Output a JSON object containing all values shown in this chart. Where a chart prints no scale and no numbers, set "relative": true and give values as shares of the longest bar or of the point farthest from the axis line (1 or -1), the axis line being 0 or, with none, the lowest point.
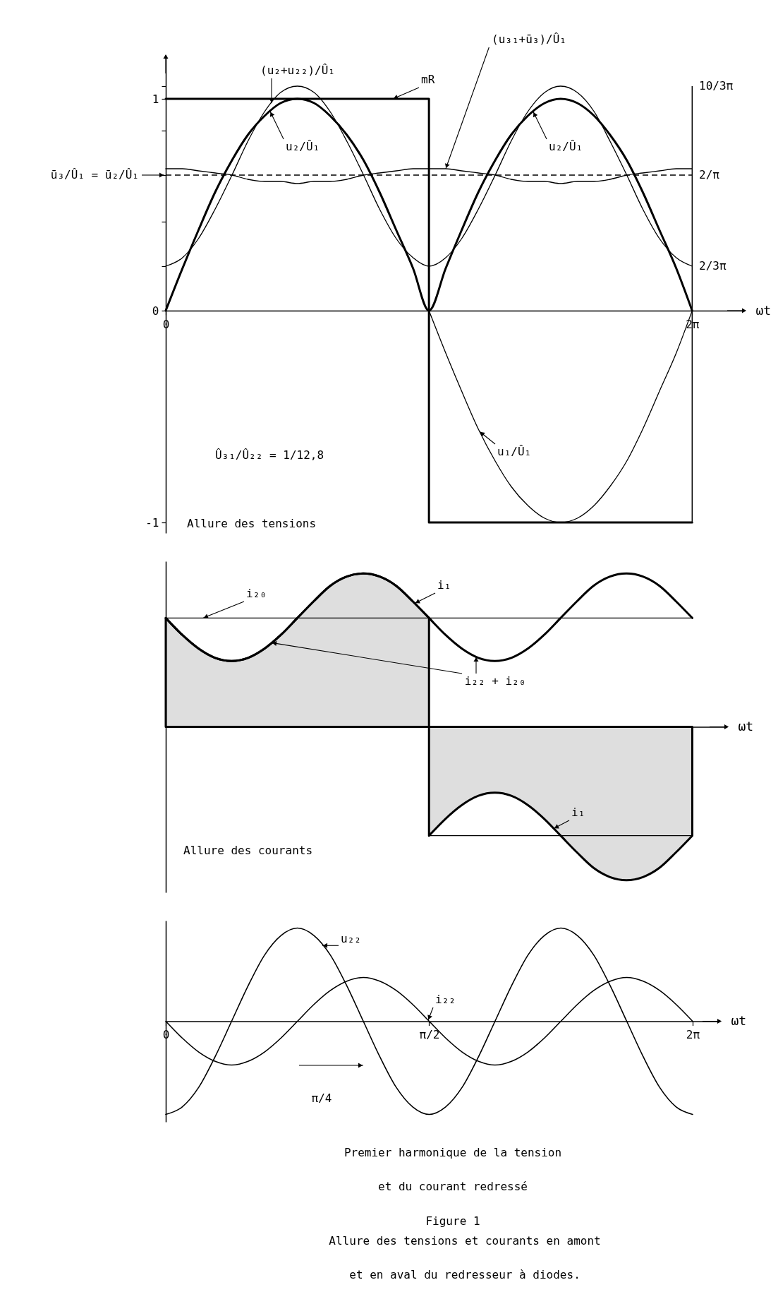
{
  "chart_data": [
    {
      "type": "line",
      "xlabel": "ωt",
      "x": [
        0,
        0.2,
        0.39,
        0.59,
        0.79,
        0.98,
        1.18,
        1.37,
        1.57,
        1.77,
        1.96,
        2.16,
        2.36,
        2.55,
        2.75,
        2.95,
        3.14,
        3.34,
        3.53,
        3.73,
        3.93,
        4.12,
        4.32,
        4.52,
        4.71,
        4.91,
        5.11,
        5.3,
        5.5,
        5.69,
        5.89,
        6.09,
        6.28
      ],
      "xlim": [
        0,
        6.9
      ],
      "xticks": [
        0,
        {
          "value": 6.28,
          "label": "2π"
        }
      ],
      "ylim": [
        -1.05,
        1.2
      ],
      "yticks": [
        -1,
        0,
        {
          "value": 0.21,
          "label": null
        },
        {
          "value": 0.42,
          "label": null
        },
        {
          "value": 0.64,
          "label": null
        },
        {
          "value": 0.85,
          "label": null
        },
        1,
        {
          "value": 1.06,
          "label": null
        }
      ],
      "series": [
        {
          "name": "mR",
          "color": "#000000",
          "x": [
            0,
            3.14,
            3.14,
            6.28
          ],
          "values": [
            1,
            1,
            -1,
            -1
          ]
        },
        {
          "name": "u₂/Û₁",
          "color": "#000000",
          "values": [
            0,
            0.2,
            0.38,
            0.56,
            0.71,
            0.83,
            0.92,
            0.98,
            1,
            0.98,
            0.92,
            0.83,
            0.71,
            0.56,
            0.38,
            0.2,
            0,
            0.2,
            0.38,
            0.56,
            0.71,
            0.83,
            0.92,
            0.98,
            1,
            0.98,
            0.92,
            0.83,
            0.71,
            0.56,
            0.38,
            0.2,
            0
          ]
        },
        {
          "name": "(u₂+u₂₂)/Û₁",
          "color": "#000000",
          "values": [
            0.21,
            0.25,
            0.34,
            0.48,
            0.64,
            0.8,
            0.94,
            1.03,
            1.06,
            1.03,
            0.94,
            0.8,
            0.64,
            0.48,
            0.34,
            0.25,
            0.21,
            0.25,
            0.34,
            0.48,
            0.64,
            0.8,
            0.94,
            1.03,
            1.06,
            1.03,
            0.94,
            0.8,
            0.64,
            0.48,
            0.34,
            0.25,
            0.21
          ]
        },
        {
          "color": "#000000",
          "values": [
            0.67,
            0.67,
            0.66,
            0.65,
            0.64,
            0.62,
            0.61,
            0.61,
            0.6,
            0.61,
            0.61,
            0.62,
            0.64,
            0.65,
            0.66,
            0.67,
            0.67,
            0.67,
            0.66,
            0.65,
            0.64,
            0.62,
            0.61,
            0.61,
            0.6,
            0.61,
            0.61,
            0.62,
            0.64,
            0.65,
            0.66,
            0.67,
            0.67
          ]
        },
        {
          "name": "u₁/Û₁",
          "color": "#000000",
          "x": [
            3.14,
            3.34,
            3.53,
            3.73,
            3.93,
            4.12,
            4.32,
            4.52,
            4.71,
            4.91,
            5.11,
            5.3,
            5.5,
            5.69,
            5.89,
            6.09,
            6.28
          ],
          "values": [
            0,
            -0.2,
            -0.38,
            -0.56,
            -0.71,
            -0.83,
            -0.92,
            -0.98,
            -1,
            -0.98,
            -0.92,
            -0.83,
            -0.71,
            -0.56,
            -0.38,
            -0.2,
            0
          ]
        }
      ],
      "ref_lines": [
        {
          "axis": "y",
          "value": 0.64,
          "label": "ū₃/Û₁ = ū₂/Û₁",
          "line_style": "dashed"
        },
        {
          "axis": "x",
          "value": 6.28
        }
      ],
      "annotations": [
        "Û₃₁/Û₂₂ = 1/12,8",
        "Allure des tensions",
        "10/3π",
        "2/π",
        "2/3π",
        {
          "text": "(u₃₁+ū₃)/Û₁",
          "x": 3.34,
          "y": 0.67
        }
      ]
    },
    {
      "type": "line",
      "relative": true,
      "xlabel": "ωt",
      "tick_labels": false,
      "categories": [
        null,
        null,
        null,
        null,
        null,
        null,
        null,
        null,
        null,
        null,
        null,
        null,
        null,
        null,
        null,
        null,
        null,
        null,
        null,
        null,
        null,
        null,
        null,
        null,
        null,
        null,
        null,
        null,
        null,
        null,
        null,
        null,
        null
      ],
      "series": [
        {
          "name": "i₂₂ + i₂₀",
          "color": "#000000",
          "values": [
            0.71,
            0.6,
            0.51,
            0.45,
            0.43,
            0.45,
            0.51,
            0.6,
            0.71,
            0.82,
            0.92,
            0.98,
            1,
            0.98,
            0.92,
            0.82,
            0.71,
            0.6,
            0.51,
            0.45,
            0.43,
            0.45,
            0.51,
            0.6,
            0.71,
            0.82,
            0.92,
            0.98,
            1,
            0.98,
            0.92,
            0.82,
            0.71
          ]
        },
        {
          "name": "i₁",
          "type": "area",
          "color": "#000000",
          "values": [
            0.71,
            0.6,
            0.51,
            0.45,
            0.43,
            0.45,
            0.51,
            0.6,
            0.71,
            0.82,
            0.92,
            0.98,
            1,
            0.98,
            0.92,
            0.82,
            0.71,
            null,
            null,
            null,
            null,
            null,
            null,
            null,
            null,
            null,
            null,
            null,
            null,
            null,
            null,
            null,
            null
          ]
        },
        {
          "name": "i₁",
          "type": "area",
          "color": "#000000",
          "values": [
            null,
            null,
            null,
            null,
            null,
            null,
            null,
            null,
            null,
            null,
            null,
            null,
            null,
            null,
            null,
            null,
            -0.71,
            -0.6,
            -0.51,
            -0.45,
            -0.43,
            -0.45,
            -0.51,
            -0.6,
            -0.71,
            -0.82,
            -0.92,
            -0.98,
            -1,
            -0.98,
            -0.92,
            -0.82,
            -0.71
          ]
        },
        {
          "name": "i₂₀",
          "color": "#000000",
          "values": [
            0.71,
            0.71,
            0.71,
            0.71,
            0.71,
            0.71,
            0.71,
            0.71,
            0.71,
            0.71,
            0.71,
            0.71,
            0.71,
            0.71,
            0.71,
            0.71,
            0.71,
            0.71,
            0.71,
            0.71,
            0.71,
            0.71,
            0.71,
            0.71,
            0.71,
            0.71,
            0.71,
            0.71,
            0.71,
            0.71,
            0.71,
            0.71,
            0.71
          ]
        },
        {
          "color": "#000000",
          "values": [
            null,
            null,
            null,
            null,
            null,
            null,
            null,
            null,
            null,
            null,
            null,
            null,
            null,
            null,
            null,
            null,
            -0.71,
            -0.71,
            -0.71,
            -0.71,
            -0.71,
            -0.71,
            -0.71,
            -0.71,
            -0.71,
            -0.71,
            -0.71,
            -0.71,
            -0.71,
            -0.71,
            -0.71,
            -0.71,
            -0.71
          ]
        }
      ],
      "annotations": [
        "Allure des courants"
      ]
    },
    {
      "type": "line",
      "relative": true,
      "xlabel": "ωt",
      "tick_labels": "x",
      "categories": [
        "0",
        null,
        null,
        null,
        null,
        null,
        null,
        null,
        null,
        null,
        null,
        null,
        null,
        null,
        null,
        null,
        "π/2",
        null,
        null,
        null,
        null,
        null,
        null,
        null,
        null,
        null,
        null,
        null,
        null,
        null,
        null,
        null,
        "2π"
      ],
      "series": [
        {
          "name": "u₂₂",
          "color": "#000000",
          "values": [
            -1,
            -0.92,
            -0.71,
            -0.38,
            0,
            0.38,
            0.71,
            0.92,
            1,
            0.92,
            0.71,
            0.38,
            0,
            -0.38,
            -0.71,
            -0.92,
            -1,
            -0.92,
            -0.71,
            -0.38,
            0,
            0.38,
            0.71,
            0.92,
            1,
            0.92,
            0.71,
            0.38,
            0,
            -0.38,
            -0.71,
            -0.92,
            -1
          ]
        },
        {
          "name": "i₂₂",
          "color": "#000000",
          "values": [
            0,
            -0.18,
            -0.33,
            -0.43,
            -0.47,
            -0.43,
            -0.33,
            -0.18,
            0,
            0.18,
            0.33,
            0.43,
            0.47,
            0.43,
            0.33,
            0.18,
            0,
            -0.18,
            -0.33,
            -0.43,
            -0.47,
            -0.43,
            -0.33,
            -0.18,
            0,
            0.18,
            0.33,
            0.43,
            0.47,
            0.43,
            0.33,
            0.18,
            0
          ]
        }
      ],
      "annotations": [
        "π/4",
        "Premier harmonique de la tension\net du courant redressé",
        "Figure 1",
        "Allure des tensions et courants en amont\net en aval du redresseur à diodes."
      ]
    }
  ]
}
